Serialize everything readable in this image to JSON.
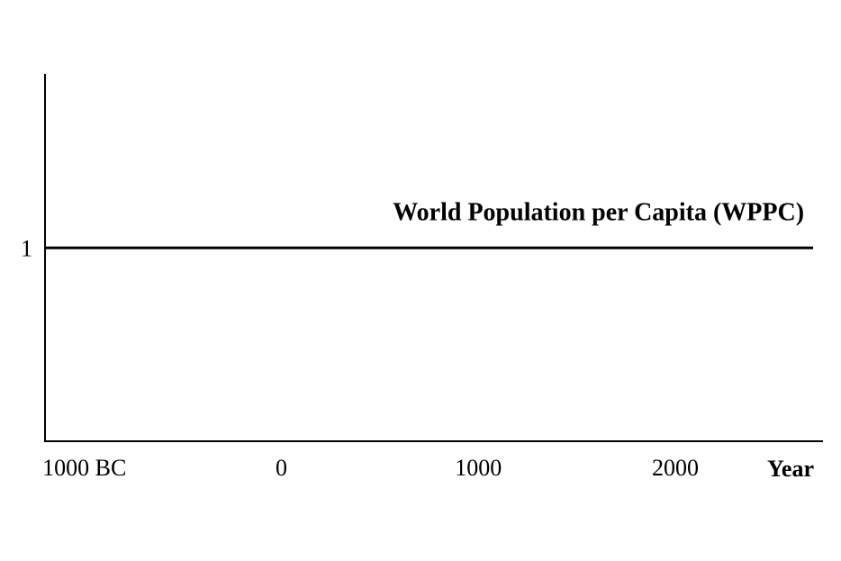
{
  "chart_data": {
    "type": "line",
    "title": "",
    "xlabel": "Year",
    "ylabel": "",
    "x_ticks": [
      {
        "value": -1000,
        "label": "1000 BC"
      },
      {
        "value": 0,
        "label": "0"
      },
      {
        "value": 1000,
        "label": "1000"
      },
      {
        "value": 2000,
        "label": "2000"
      }
    ],
    "y_ticks": [
      {
        "value": 1,
        "label": "1"
      }
    ],
    "xlim": [
      -1200,
      2750
    ],
    "ylim": [
      0,
      1.9
    ],
    "grid": false,
    "series": [
      {
        "name": "World Population per Capita (WPPC)",
        "x": [
          -1200,
          2700
        ],
        "y": [
          1,
          1
        ],
        "color": "#000000"
      }
    ]
  }
}
